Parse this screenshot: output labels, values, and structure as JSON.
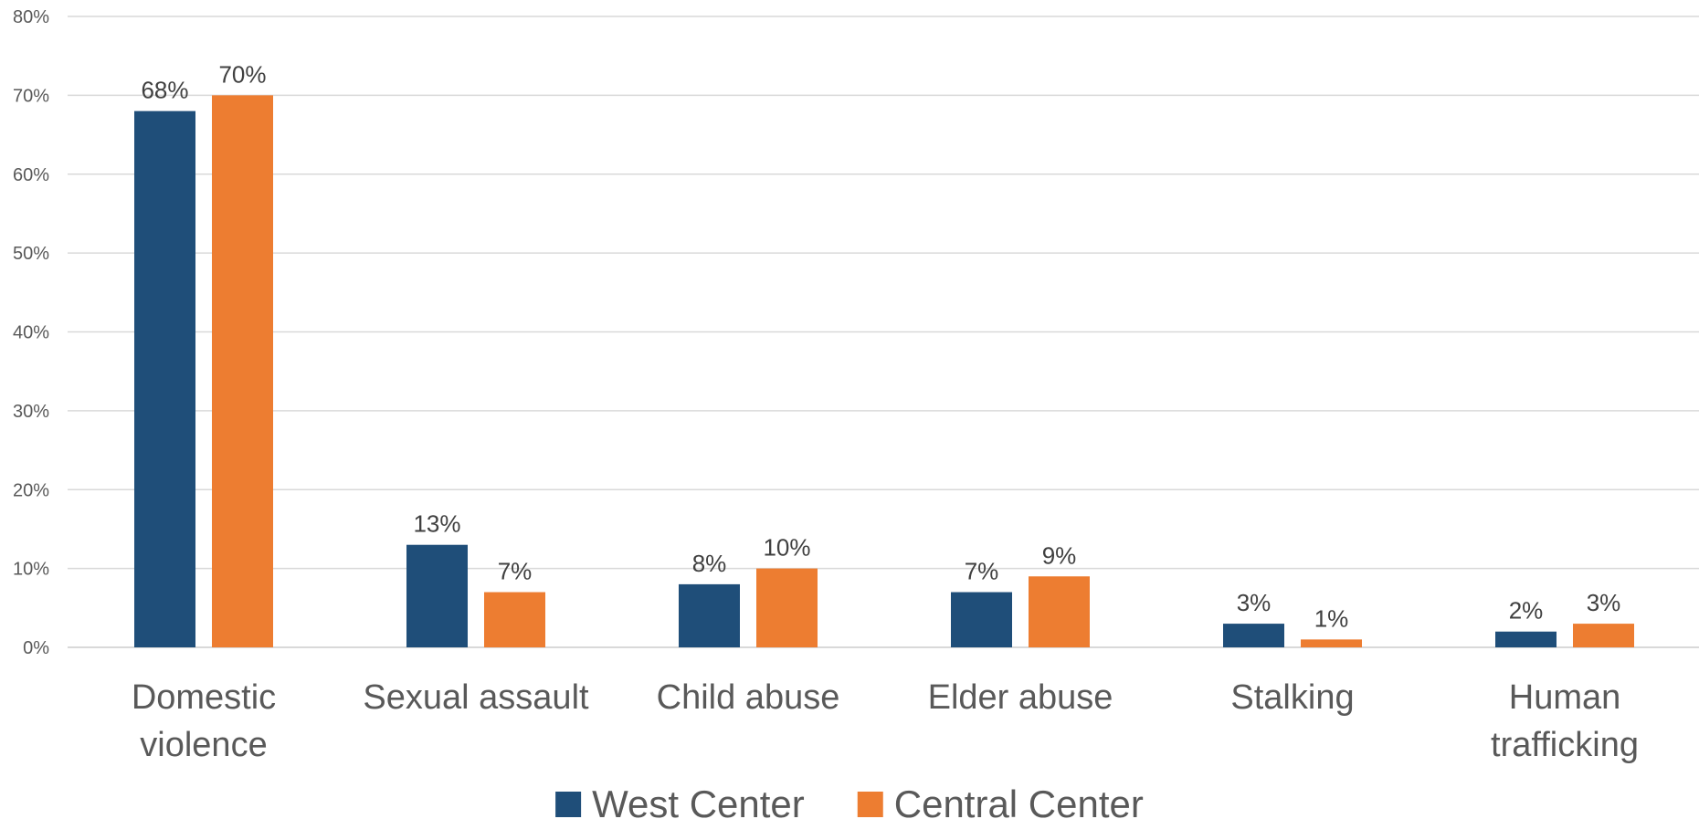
{
  "chart_data": {
    "type": "bar",
    "title": "",
    "xlabel": "",
    "ylabel": "",
    "ylim": [
      0,
      80
    ],
    "yticks": [
      0,
      10,
      20,
      30,
      40,
      50,
      60,
      70,
      80
    ],
    "ytick_format": "{v}%",
    "value_format": "{v}%",
    "grid": true,
    "legend_position": "bottom",
    "categories": [
      [
        "Domestic",
        "violence"
      ],
      [
        "Sexual assault"
      ],
      [
        "Child abuse"
      ],
      [
        "Elder abuse"
      ],
      [
        "Stalking"
      ],
      [
        "Human",
        "trafficking"
      ]
    ],
    "series": [
      {
        "name": "West Center",
        "color": "#1f4e79",
        "values": [
          68,
          13,
          8,
          7,
          3,
          2
        ]
      },
      {
        "name": "Central Center",
        "color": "#ed7d31",
        "values": [
          70,
          7,
          10,
          9,
          1,
          3
        ]
      }
    ]
  }
}
